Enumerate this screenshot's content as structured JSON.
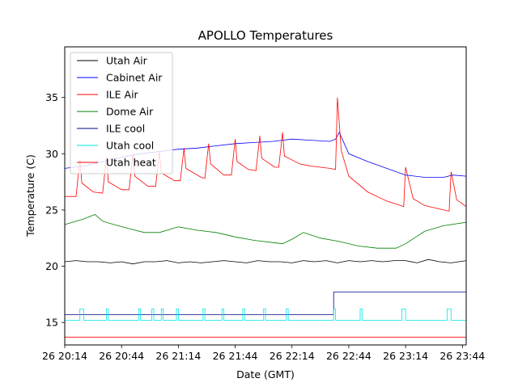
{
  "chart_data": {
    "type": "line",
    "title": "APOLLO Temperatures",
    "xlabel": "Date (GMT)",
    "ylabel": "Temperature (C)",
    "xlim_minutes": [
      0,
      212
    ],
    "ylim": [
      13.0,
      39.5
    ],
    "grid": false,
    "legend_position": "top-left",
    "x_tick_minutes": [
      0,
      30,
      60,
      90,
      120,
      150,
      180,
      210
    ],
    "x_tick_labels": [
      "26 20:14",
      "26 20:44",
      "26 21:14",
      "26 21:44",
      "26 22:14",
      "26 22:44",
      "26 23:14",
      "26 23:44"
    ],
    "y_ticks": [
      15,
      20,
      25,
      30,
      35
    ],
    "y_tick_labels": [
      "15",
      "20",
      "25",
      "30",
      "35"
    ],
    "series": [
      {
        "name": "Utah Air",
        "color": "#000000",
        "x": [
          0,
          6,
          12,
          18,
          24,
          30,
          36,
          42,
          48,
          54,
          60,
          66,
          72,
          78,
          84,
          90,
          96,
          102,
          108,
          114,
          120,
          126,
          132,
          138,
          144,
          150,
          156,
          162,
          168,
          174,
          180,
          186,
          192,
          198,
          204,
          212
        ],
        "values": [
          20.4,
          20.5,
          20.4,
          20.4,
          20.3,
          20.4,
          20.2,
          20.4,
          20.4,
          20.5,
          20.3,
          20.4,
          20.3,
          20.4,
          20.5,
          20.4,
          20.3,
          20.5,
          20.4,
          20.4,
          20.3,
          20.5,
          20.4,
          20.5,
          20.3,
          20.5,
          20.4,
          20.5,
          20.4,
          20.5,
          20.5,
          20.3,
          20.6,
          20.4,
          20.3,
          20.5
        ]
      },
      {
        "name": "Cabinet Air",
        "color": "#0000ff",
        "x": [
          0,
          10,
          20,
          30,
          40,
          50,
          60,
          70,
          80,
          90,
          100,
          110,
          120,
          130,
          140,
          143,
          145,
          150,
          160,
          170,
          180,
          190,
          200,
          205,
          212
        ],
        "values": [
          28.7,
          28.9,
          29.3,
          29.7,
          30.0,
          30.2,
          30.4,
          30.5,
          30.7,
          30.9,
          31.0,
          31.1,
          31.3,
          31.2,
          31.1,
          31.3,
          31.9,
          30.0,
          29.3,
          28.7,
          28.1,
          27.9,
          27.9,
          28.1,
          28.0
        ]
      },
      {
        "name": "ILE Air",
        "color": "#ff0000",
        "x": [
          0,
          6,
          8,
          9,
          15,
          20,
          22,
          23,
          30,
          34,
          36,
          37,
          44,
          48,
          50,
          51,
          58,
          61,
          63,
          64,
          72,
          74,
          76,
          77,
          84,
          88,
          90,
          91,
          97,
          101,
          103,
          104,
          111,
          113,
          115,
          116,
          124,
          130,
          140,
          143,
          144,
          146,
          150,
          160,
          170,
          179,
          180,
          184,
          190,
          200,
          203,
          204,
          207,
          212
        ],
        "values": [
          26.2,
          26.2,
          29.5,
          27.4,
          26.6,
          26.5,
          29.7,
          27.5,
          26.8,
          26.8,
          30.0,
          28.0,
          27.1,
          27.1,
          30.2,
          28.3,
          27.6,
          27.6,
          30.5,
          28.7,
          27.9,
          27.8,
          30.9,
          29.1,
          28.1,
          28.1,
          31.3,
          29.3,
          28.6,
          28.5,
          31.6,
          29.6,
          28.8,
          28.8,
          31.9,
          29.8,
          29.1,
          28.9,
          28.7,
          28.6,
          35.0,
          30.3,
          28.0,
          26.6,
          25.8,
          25.3,
          28.8,
          26.0,
          25.4,
          25.0,
          24.9,
          28.4,
          25.9,
          25.3
        ]
      },
      {
        "name": "Dome Air",
        "color": "#008000",
        "x": [
          0,
          10,
          16,
          20,
          26,
          35,
          42,
          50,
          60,
          70,
          80,
          90,
          100,
          110,
          115,
          120,
          126,
          135,
          145,
          155,
          165,
          175,
          180,
          190,
          200,
          212
        ],
        "values": [
          23.7,
          24.2,
          24.6,
          24.0,
          23.7,
          23.3,
          23.0,
          23.0,
          23.5,
          23.2,
          23.0,
          22.6,
          22.3,
          22.1,
          22.0,
          22.4,
          23.0,
          22.5,
          22.2,
          21.8,
          21.6,
          21.6,
          22.0,
          23.1,
          23.6,
          23.9
        ]
      },
      {
        "name": "ILE cool",
        "color": "#00008b",
        "x": [
          0,
          142,
          142,
          212
        ],
        "values": [
          15.7,
          15.7,
          17.7,
          17.7
        ]
      },
      {
        "name": "Utah cool",
        "color": "#00e5e5",
        "x": [
          0,
          8,
          8,
          10,
          10,
          22,
          22,
          23,
          23,
          39,
          39,
          40,
          40,
          46,
          46,
          47,
          47,
          51,
          51,
          52,
          52,
          59,
          59,
          60,
          60,
          73,
          73,
          74,
          74,
          83,
          83,
          84,
          84,
          94,
          94,
          95,
          95,
          105,
          105,
          106,
          106,
          117,
          117,
          118,
          118,
          142,
          142,
          143,
          143,
          156,
          156,
          157,
          157,
          178,
          178,
          180,
          180,
          202,
          202,
          204,
          204,
          212
        ],
        "values": [
          15.2,
          15.2,
          16.2,
          16.2,
          15.2,
          15.2,
          16.2,
          16.2,
          15.2,
          15.2,
          16.2,
          16.2,
          15.2,
          15.2,
          16.2,
          16.2,
          15.2,
          15.2,
          16.2,
          16.2,
          15.2,
          15.2,
          16.2,
          16.2,
          15.2,
          15.2,
          16.2,
          16.2,
          15.2,
          15.2,
          16.2,
          16.2,
          15.2,
          15.2,
          16.2,
          16.2,
          15.2,
          15.2,
          16.2,
          16.2,
          15.2,
          15.2,
          16.2,
          16.2,
          15.2,
          15.2,
          16.2,
          16.2,
          15.2,
          15.2,
          16.2,
          16.2,
          15.2,
          15.2,
          16.2,
          16.2,
          15.2,
          15.2,
          16.2,
          16.2,
          15.2,
          15.2
        ]
      },
      {
        "name": "Utah heat",
        "color": "#ff0000",
        "x": [
          0,
          212
        ],
        "values": [
          13.7,
          13.7
        ]
      }
    ]
  }
}
